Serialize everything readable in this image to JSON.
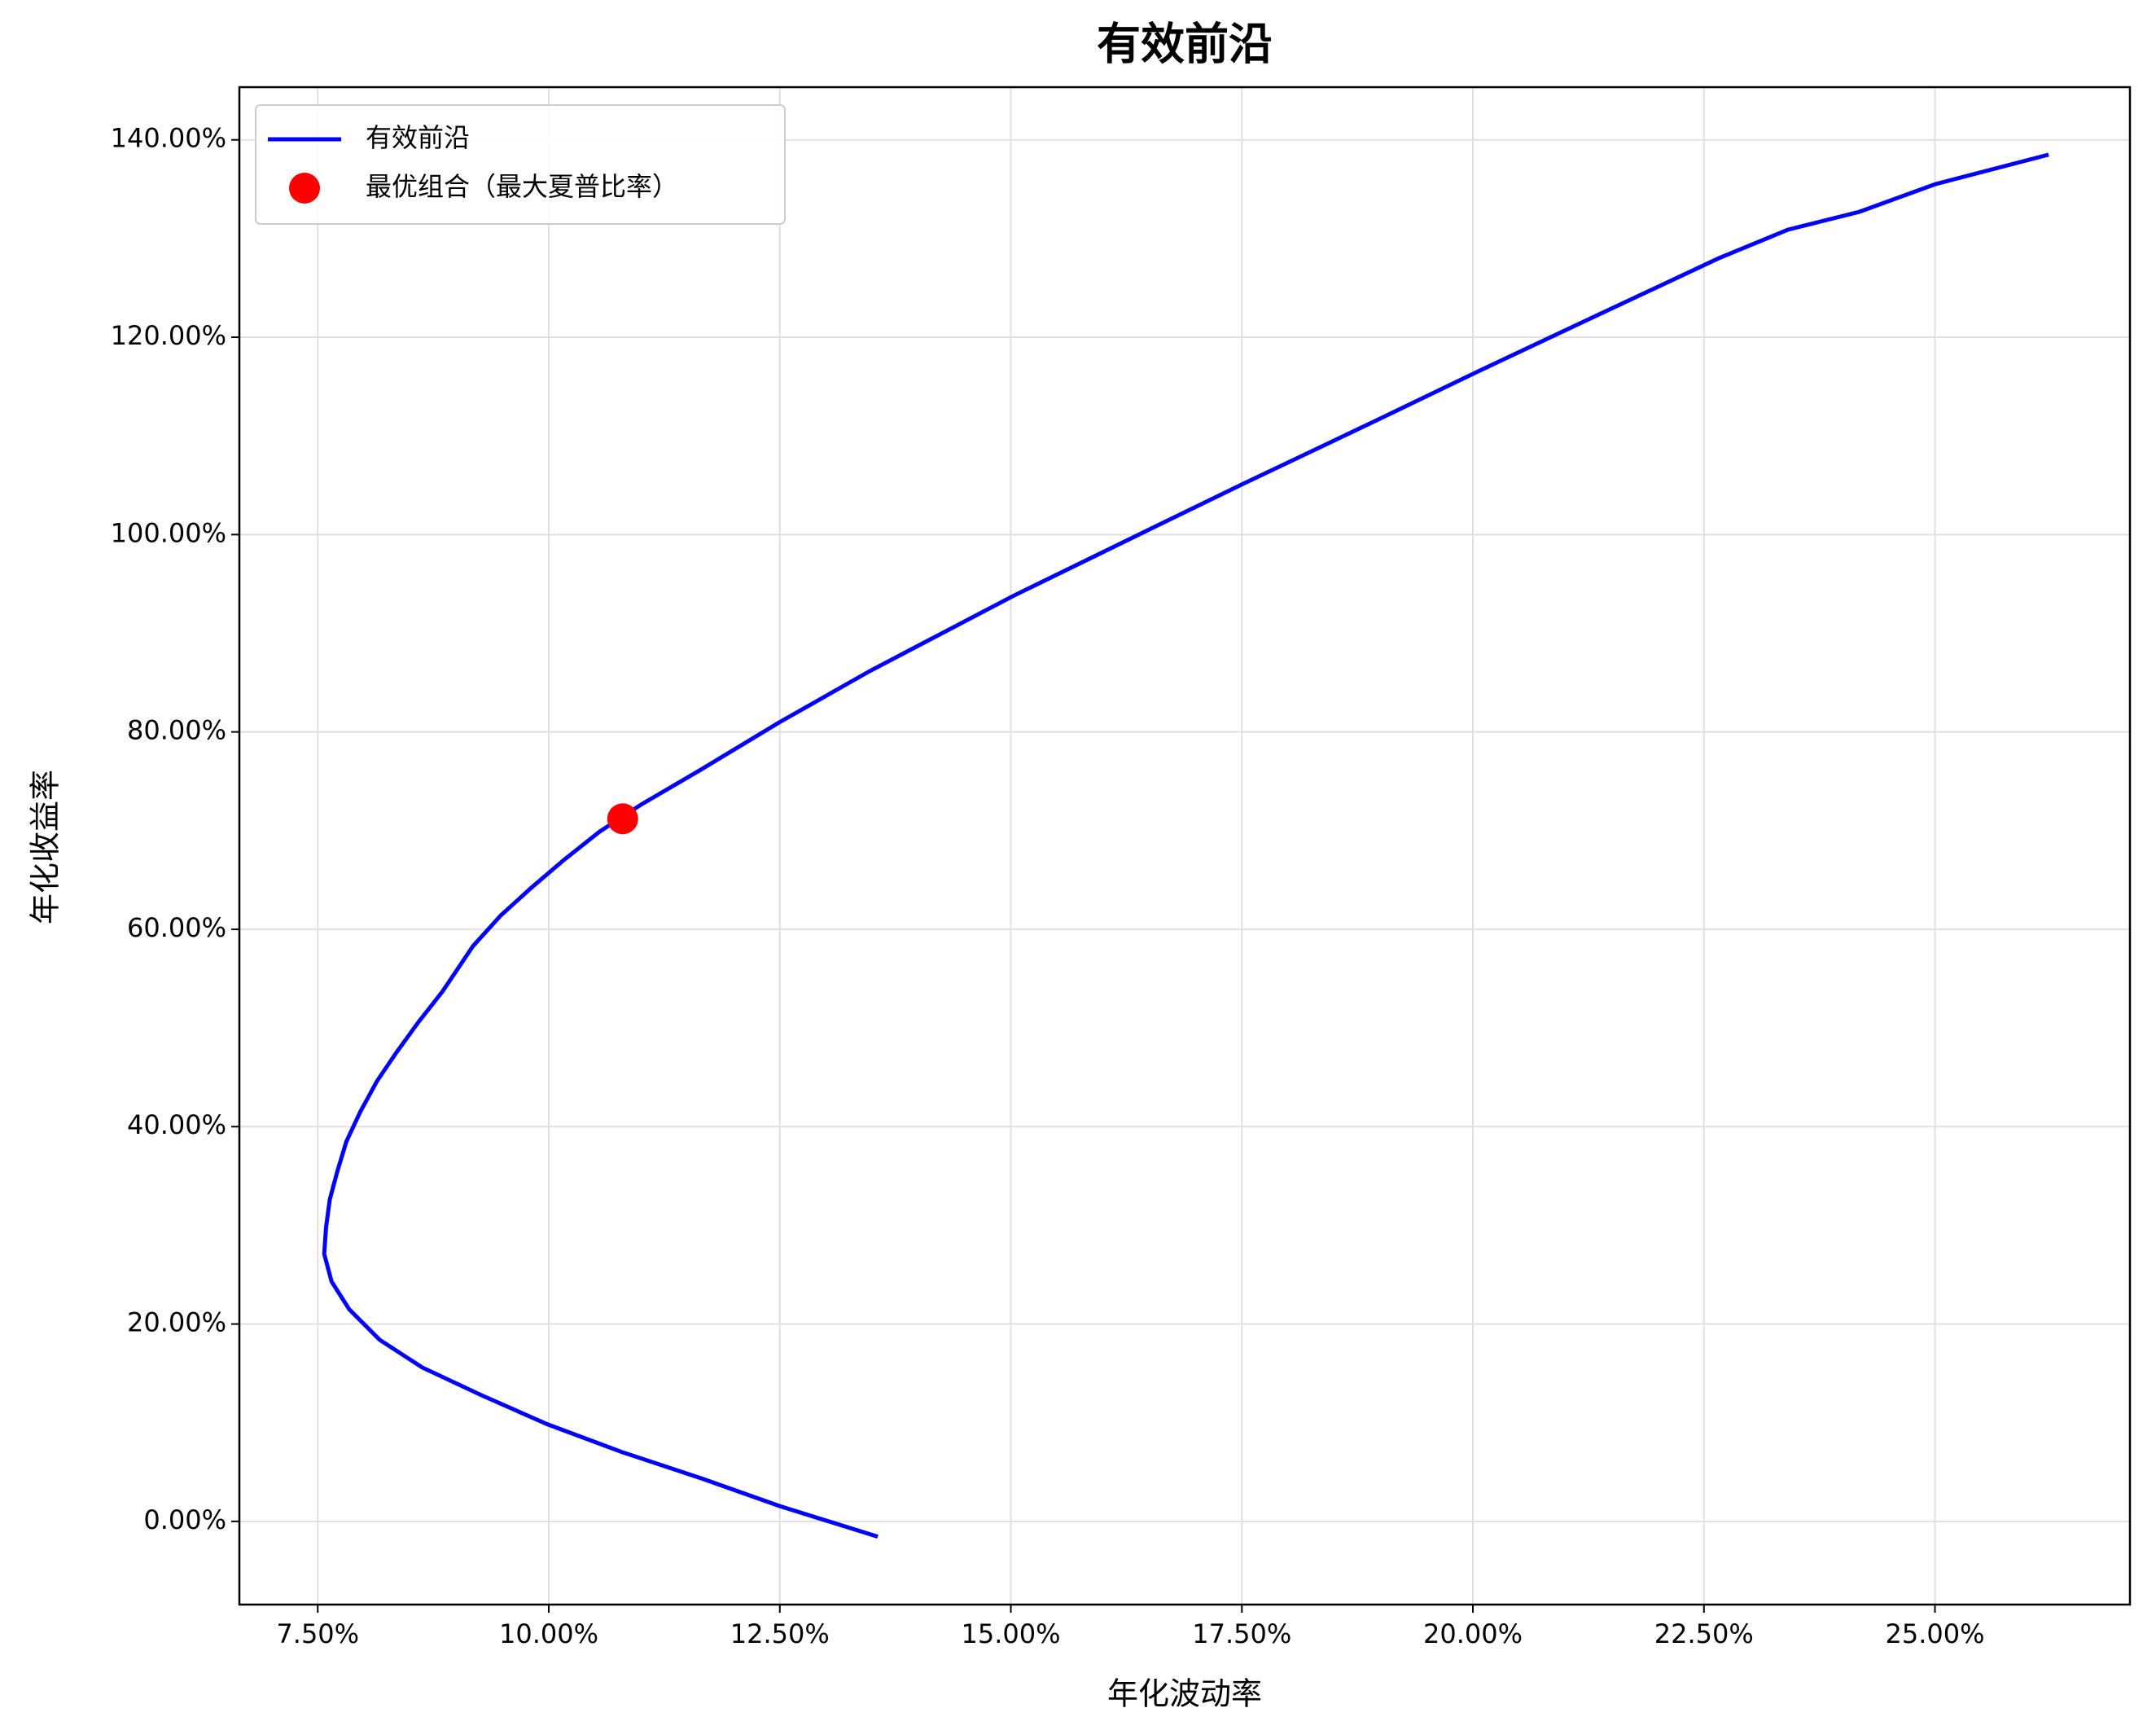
{
  "chart_data": {
    "type": "line",
    "title": "有效前沿",
    "x_label": "年化波动率",
    "y_label": "年化收益率",
    "xlim": [
      6.652,
      27.11
    ],
    "ylim": [
      -8.43,
      145.34
    ],
    "xticks": [
      {
        "value": 7.5,
        "label": "7.50%"
      },
      {
        "value": 10,
        "label": "10.00%"
      },
      {
        "value": 12.5,
        "label": "12.50%"
      },
      {
        "value": 15,
        "label": "15.00%"
      },
      {
        "value": 17.5,
        "label": "17.50%"
      },
      {
        "value": 20,
        "label": "20.00%"
      },
      {
        "value": 22.5,
        "label": "22.50%"
      },
      {
        "value": 25,
        "label": "25.00%"
      }
    ],
    "yticks": [
      {
        "value": 0,
        "label": "0.00%"
      },
      {
        "value": 20,
        "label": "20.00%"
      },
      {
        "value": 40,
        "label": "40.00%"
      },
      {
        "value": 60,
        "label": "60.00%"
      },
      {
        "value": 80,
        "label": "80.00%"
      },
      {
        "value": 100,
        "label": "100.00%"
      },
      {
        "value": 120,
        "label": "120.00%"
      },
      {
        "value": 140,
        "label": "140.00%"
      }
    ],
    "grid": true,
    "legend": "upper left",
    "series": [
      {
        "name": "有效前沿",
        "type": "line",
        "color": "#0000ff",
        "x": [
          13.56,
          12.5,
          11.65,
          10.79,
          9.985,
          9.27,
          8.63,
          8.17,
          7.84,
          7.65,
          7.57,
          7.59,
          7.63,
          7.71,
          7.81,
          7.96,
          8.14,
          8.35,
          8.59,
          8.85,
          9.18,
          9.48,
          9.81,
          10.16,
          10.55,
          11.01,
          11.65,
          12.5,
          13.48,
          15.03,
          16.56,
          17.46,
          18.94,
          20.07,
          21.18,
          22.66,
          23.41,
          24.18,
          25.0,
          26.23
        ],
        "values": [
          -1.55,
          1.55,
          4.36,
          7.03,
          9.84,
          12.79,
          15.6,
          18.4,
          21.5,
          24.3,
          27.1,
          29.8,
          32.6,
          35.4,
          38.5,
          41.5,
          44.6,
          47.5,
          50.6,
          53.7,
          58.3,
          61.4,
          64.2,
          67.0,
          69.9,
          72.7,
          76.2,
          81.0,
          86.2,
          93.8,
          100.8,
          104.9,
          111.5,
          116.6,
          121.5,
          128.0,
          130.9,
          132.7,
          135.5,
          138.5
        ]
      },
      {
        "name": "最优组合（最大夏普比率）",
        "type": "scatter",
        "color": "#ff0000",
        "x": [
          10.8
        ],
        "values": [
          71.2
        ]
      }
    ]
  }
}
